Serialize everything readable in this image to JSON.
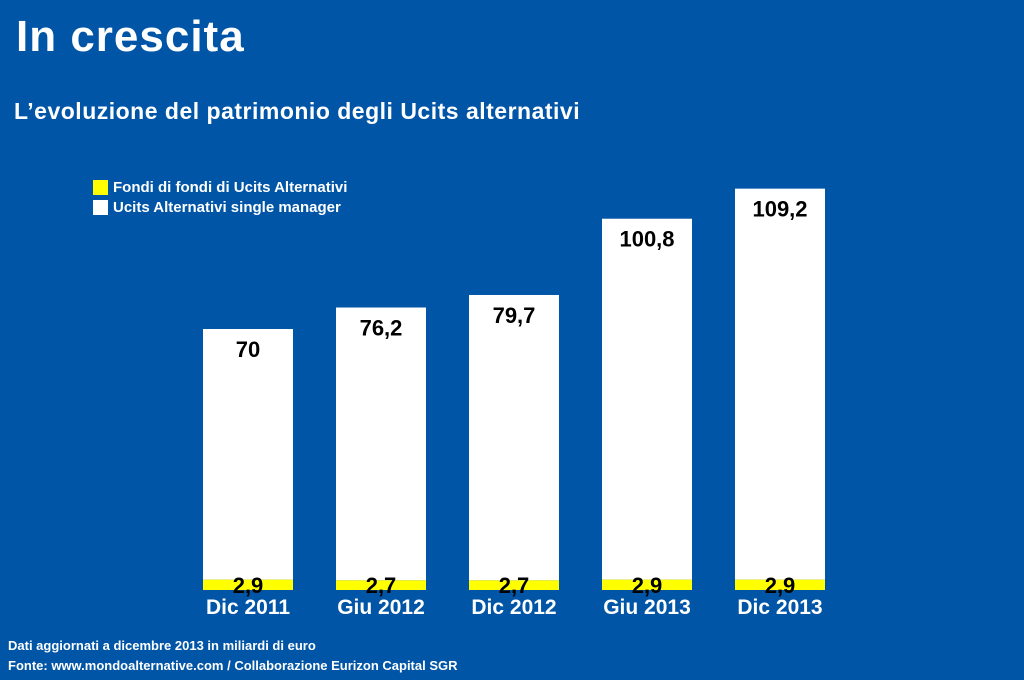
{
  "title": "In crescita",
  "subtitle": "L’evoluzione del patrimonio degli Ucits alternativi",
  "chart_data": {
    "type": "bar",
    "stacked": true,
    "categories": [
      "Dic 2011",
      "Giu 2012",
      "Dic 2012",
      "Giu 2013",
      "Dic 2013"
    ],
    "series": [
      {
        "name": "Fondi di fondi di Ucits Alternativi",
        "values": [
          2.9,
          2.7,
          2.7,
          2.9,
          2.9
        ],
        "labels": [
          "2,9",
          "2,7",
          "2,7",
          "2,9",
          "2,9"
        ],
        "color": "#ffff00"
      },
      {
        "name": "Ucits Alternativi single manager",
        "values": [
          70,
          76.2,
          79.7,
          100.8,
          109.2
        ],
        "labels": [
          "70",
          "76,2",
          "79,7",
          "100,8",
          "109,2"
        ],
        "color": "#ffffff"
      }
    ],
    "ylim": [
      0,
      112
    ],
    "grid": false,
    "legend_position": "top-left"
  },
  "footer": {
    "note": "Dati aggiornati a dicembre 2013 in miliardi di euro",
    "source": "Fonte: www.mondoalternative.com / Collaborazione Eurizon Capital SGR"
  },
  "colors": {
    "background": "#0055a6",
    "single_manager": "#ffffff",
    "fund_of_funds": "#ffff00"
  }
}
